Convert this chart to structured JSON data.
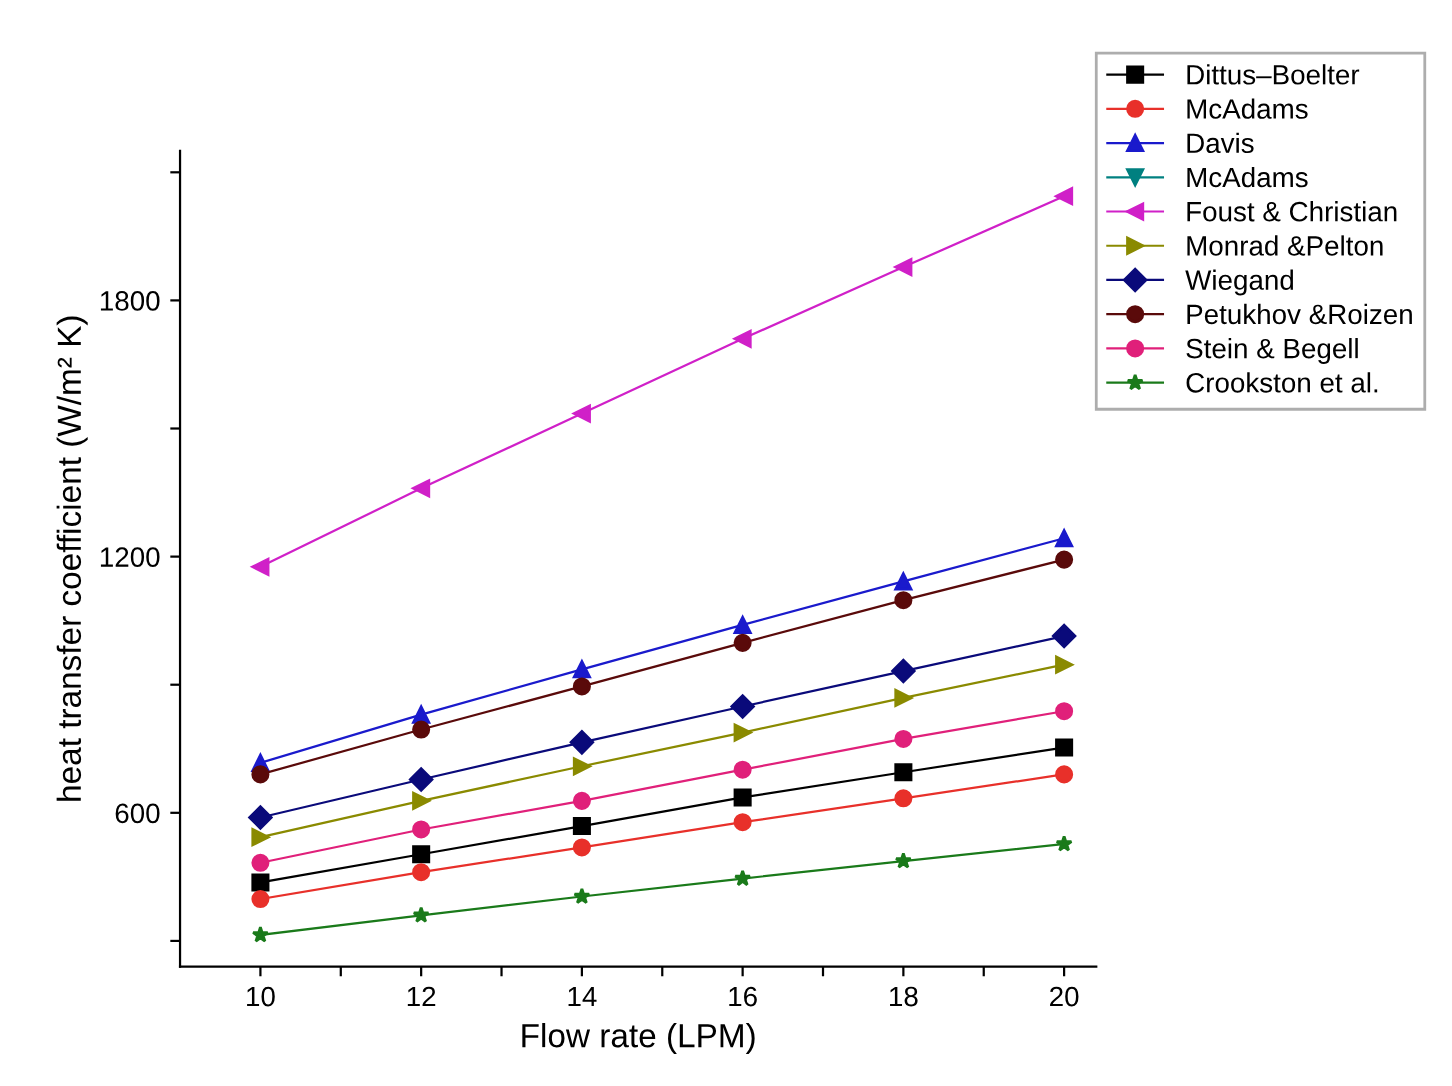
{
  "chart_data": {
    "type": "line",
    "xlabel": "Flow rate (LPM)",
    "ylabel": "heat transfer coefficient (W/m² K)",
    "x": [
      10,
      12,
      14,
      16,
      18,
      20
    ],
    "xlim": [
      9,
      20.4
    ],
    "xticks": [
      10,
      {
        "value": 11,
        "label": null
      },
      12,
      {
        "value": 13,
        "label": null
      },
      14,
      {
        "value": 15,
        "label": null
      },
      16,
      {
        "value": 17,
        "label": null
      },
      18,
      {
        "value": 19,
        "label": null
      },
      20
    ],
    "ylim": [
      240,
      2150
    ],
    "yticks": [
      {
        "value": 300,
        "label": null
      },
      600,
      {
        "value": 900,
        "label": null
      },
      1200,
      {
        "value": 1500,
        "label": null
      },
      1800,
      {
        "value": 2100,
        "label": null
      }
    ],
    "grid": false,
    "legend": "top right",
    "line_style": "solid",
    "series": [
      {
        "name": "Dittus–Boelter",
        "color": "#000000",
        "marker": "square",
        "values": [
          437,
          503,
          569,
          636,
          695,
          753
        ]
      },
      {
        "name": "McAdams",
        "color": "#e8302a",
        "marker": "circle",
        "values": [
          398,
          461,
          519,
          578,
          634,
          690
        ]
      },
      {
        "name": "Davis",
        "color": "#1a1acc",
        "marker": "triangle",
        "values": [
          717,
          830,
          936,
          1040,
          1142,
          1243
        ]
      },
      {
        "name": "McAdams",
        "color": "#008080",
        "marker": "triangle-down",
        "values": [
          null,
          null,
          null,
          null,
          null,
          null
        ]
      },
      {
        "name": "Foust & Christian",
        "color": "#d020c8",
        "marker": "triangle-left",
        "values": [
          1176,
          1360,
          1535,
          1710,
          1878,
          2044
        ]
      },
      {
        "name": "Monrad &Pelton",
        "color": "#8a8a00",
        "marker": "triangle-right",
        "values": [
          543,
          628,
          709,
          788,
          869,
          947
        ]
      },
      {
        "name": "Wiegand",
        "color": "#0a0a7a",
        "marker": "diamond",
        "values": [
          589,
          678,
          765,
          849,
          932,
          1014
        ]
      },
      {
        "name": "Petukhov &Roizen",
        "color": "#5a0a0a",
        "marker": "circle",
        "values": [
          690,
          795,
          896,
          998,
          1098,
          1193
        ]
      },
      {
        "name": "Stein & Begell",
        "color": "#e0207a",
        "marker": "circle",
        "values": [
          483,
          561,
          628,
          701,
          773,
          838
        ]
      },
      {
        "name": "Crookston et al.",
        "color": "#1a7a1a",
        "marker": "star",
        "values": [
          314,
          360,
          404,
          446,
          487,
          527
        ]
      }
    ]
  }
}
